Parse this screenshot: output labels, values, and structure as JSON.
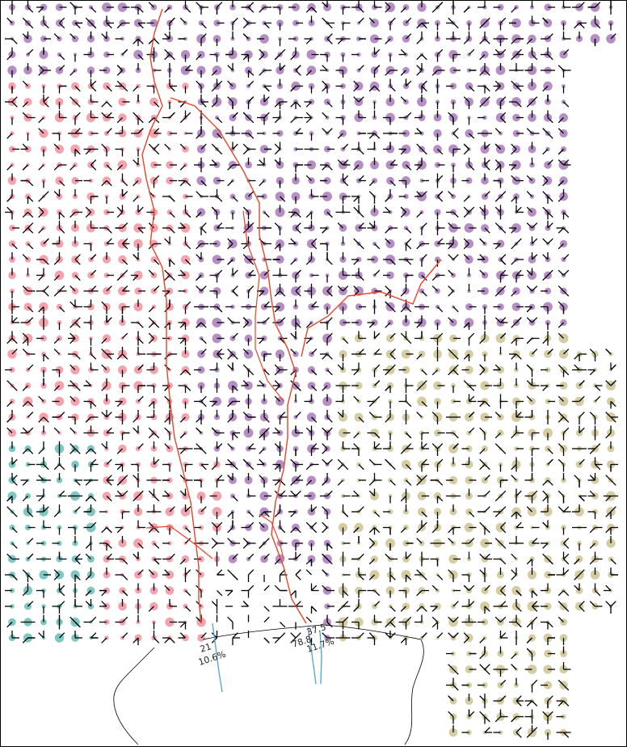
{
  "map": {
    "kind": "flow-direction grid with drainage basins",
    "basins": [
      {
        "name": "basin-north-west",
        "color": "#b58ec4"
      },
      {
        "name": "basin-west",
        "color": "#f2a3ae"
      },
      {
        "name": "basin-south-west",
        "color": "#7fc7c0"
      },
      {
        "name": "basin-east",
        "color": "#d4cca2"
      },
      {
        "name": "basin-small-centre",
        "color": "#c9e0a0"
      }
    ],
    "river_color": "#e8442a",
    "outlet_stream_color": "#5aa7d6",
    "coastline_color": "#000000",
    "annotations": {
      "left_outlet_value": "21",
      "left_outlet_share": "10.6%",
      "centre_outlet_value": "78.8",
      "centre_outlet_value2": "37.5",
      "centre_outlet_share": "11.7%"
    }
  }
}
